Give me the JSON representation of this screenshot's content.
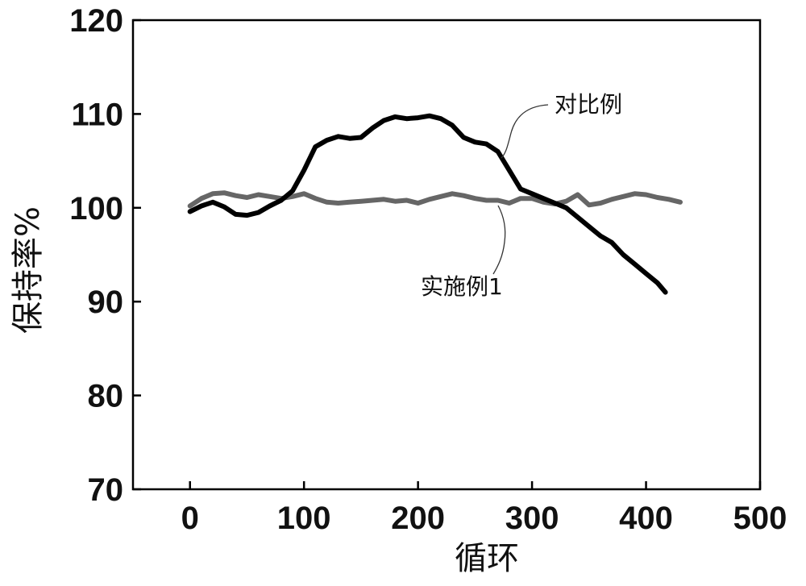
{
  "chart_data": {
    "type": "line",
    "title": "",
    "xlabel": "循环",
    "ylabel": "保持率%",
    "xlim": [
      -50,
      500
    ],
    "ylim": [
      70,
      120
    ],
    "xticks": [
      0,
      100,
      200,
      300,
      400,
      500
    ],
    "yticks": [
      70,
      80,
      90,
      100,
      110,
      120
    ],
    "grid": false,
    "annotations": [
      {
        "text": "对比例",
        "series": "对比例"
      },
      {
        "text": "实施例1",
        "series": "实施例1"
      }
    ],
    "series": [
      {
        "name": "对比例",
        "color": "#000000",
        "x": [
          0,
          10,
          20,
          30,
          40,
          50,
          60,
          70,
          80,
          90,
          100,
          110,
          120,
          130,
          140,
          150,
          160,
          170,
          180,
          190,
          200,
          210,
          220,
          230,
          240,
          250,
          260,
          270,
          280,
          290,
          300,
          310,
          320,
          330,
          340,
          350,
          360,
          370,
          380,
          390,
          400,
          410,
          417
        ],
        "y": [
          99.6,
          100.2,
          100.6,
          100.1,
          99.3,
          99.2,
          99.5,
          100.2,
          100.8,
          101.8,
          104.0,
          106.5,
          107.2,
          107.6,
          107.4,
          107.5,
          108.5,
          109.3,
          109.7,
          109.5,
          109.6,
          109.8,
          109.5,
          108.8,
          107.5,
          107.0,
          106.8,
          106.0,
          104.0,
          102.0,
          101.5,
          101.0,
          100.5,
          100.0,
          99.0,
          98.0,
          97.0,
          96.3,
          95.0,
          94.0,
          93.0,
          92.0,
          91.0
        ]
      },
      {
        "name": "实施例1",
        "color": "#666666",
        "x": [
          0,
          10,
          20,
          30,
          40,
          50,
          60,
          70,
          80,
          90,
          100,
          110,
          120,
          130,
          140,
          150,
          160,
          170,
          180,
          190,
          200,
          210,
          220,
          230,
          240,
          250,
          260,
          270,
          280,
          290,
          300,
          310,
          320,
          330,
          340,
          350,
          360,
          370,
          380,
          390,
          400,
          410,
          420,
          430
        ],
        "y": [
          100.2,
          101.0,
          101.5,
          101.6,
          101.3,
          101.1,
          101.4,
          101.2,
          101.0,
          101.2,
          101.5,
          101.0,
          100.6,
          100.5,
          100.6,
          100.7,
          100.8,
          100.9,
          100.7,
          100.8,
          100.5,
          100.9,
          101.2,
          101.5,
          101.3,
          101.0,
          100.8,
          100.8,
          100.5,
          101.0,
          101.0,
          100.6,
          100.4,
          100.7,
          101.4,
          100.3,
          100.5,
          100.9,
          101.2,
          101.5,
          101.4,
          101.1,
          100.9,
          100.6
        ]
      }
    ]
  }
}
